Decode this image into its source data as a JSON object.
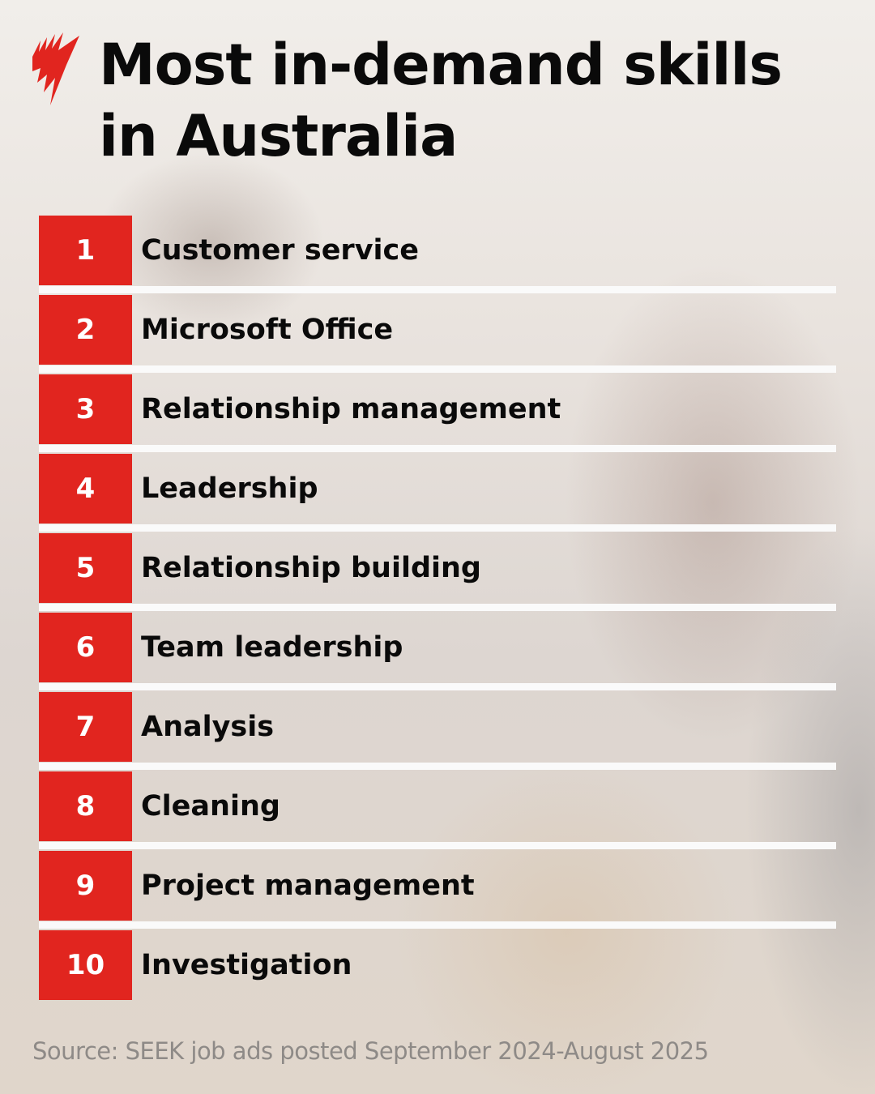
{
  "brand": {
    "logo_icon": "sbs-red-logo-icon",
    "accent_color": "#e1251f"
  },
  "header": {
    "title_line1": "Most in-demand skills",
    "title_line2": "in Australia"
  },
  "skills": [
    {
      "rank": "1",
      "label": "Customer service"
    },
    {
      "rank": "2",
      "label": "Microsoft Office"
    },
    {
      "rank": "3",
      "label": "Relationship management"
    },
    {
      "rank": "4",
      "label": "Leadership"
    },
    {
      "rank": "5",
      "label": "Relationship building"
    },
    {
      "rank": "6",
      "label": "Team leadership"
    },
    {
      "rank": "7",
      "label": "Analysis"
    },
    {
      "rank": "8",
      "label": "Cleaning"
    },
    {
      "rank": "9",
      "label": "Project management"
    },
    {
      "rank": "10",
      "label": "Investigation"
    }
  ],
  "footer": {
    "source": "Source: SEEK job ads posted September 2024-August 2025"
  }
}
